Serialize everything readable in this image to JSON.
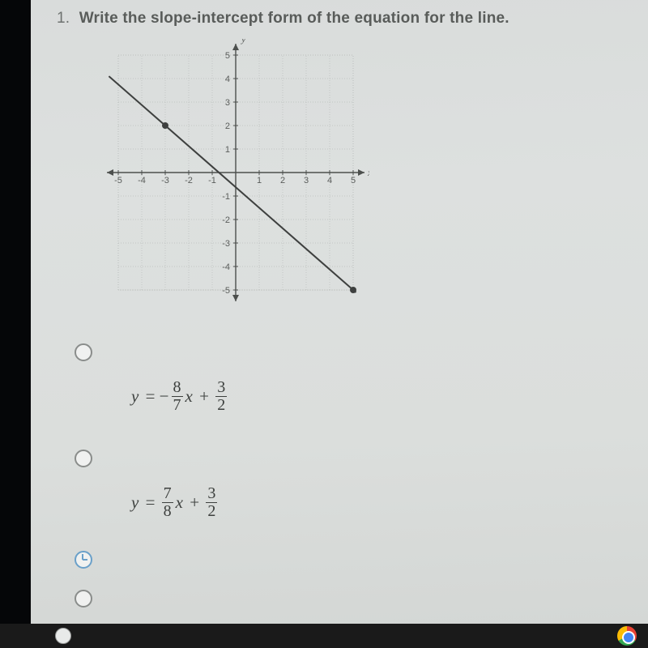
{
  "question": {
    "number": "1.",
    "text": "Write the slope-intercept form of the equation for the line."
  },
  "graph": {
    "xmin": -5,
    "xmax": 5,
    "ymin": -5,
    "ymax": 5,
    "tick_step": 1,
    "x_ticks": [
      "-5",
      "-4",
      "-3",
      "-2",
      "-1",
      "1",
      "2",
      "3",
      "4",
      "5"
    ],
    "y_ticks": [
      "-5",
      "-4",
      "-3",
      "-2",
      "-1",
      "1",
      "2",
      "3",
      "4",
      "5"
    ],
    "x_axis_label": "x",
    "y_axis_label": "y",
    "grid_color": "#b9bdbb",
    "grid_dash": "1 2",
    "axis_color": "#4c4f4d",
    "line_color": "#3e403f",
    "line_width": 2,
    "point_color": "#3e403f",
    "point_radius": 4,
    "line_pts": [
      [
        -3,
        2
      ],
      [
        5,
        -5
      ]
    ],
    "tick_font_size": 11,
    "tick_color": "#5a5d5b",
    "label_color": "#5a5d5b",
    "background": "#dcdedd"
  },
  "options": [
    {
      "radio_style": "empty",
      "prefix": "y = −",
      "frac1_num": "8",
      "frac1_den": "7",
      "middle": "x +",
      "frac2_num": "3",
      "frac2_den": "2"
    },
    {
      "radio_style": "empty",
      "prefix": "y = ",
      "frac1_num": "7",
      "frac1_den": "8",
      "middle": "x +",
      "frac2_num": "3",
      "frac2_den": "2"
    },
    {
      "radio_style": "clock",
      "prefix": "",
      "frac1_num": "",
      "frac1_den": "",
      "middle": "",
      "frac2_num": "",
      "frac2_den": ""
    },
    {
      "radio_style": "empty",
      "prefix": "",
      "frac1_num": "",
      "frac1_den": "",
      "middle": "",
      "frac2_num": "",
      "frac2_den": ""
    }
  ],
  "colors": {
    "page_bg": "#dbdedc",
    "text": "#3d403e"
  }
}
